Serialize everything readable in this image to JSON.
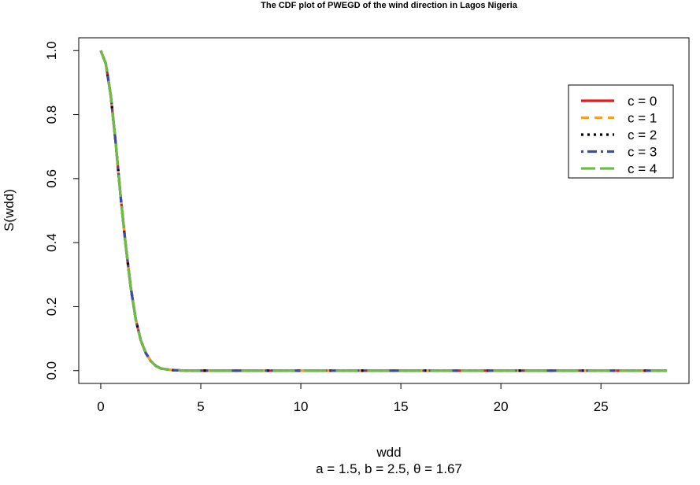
{
  "chart_data": {
    "type": "line",
    "title": "The CDF plot of PWEGD of the wind direction in Lagos Nigeria",
    "xlabel": "wdd",
    "subtitle": "a = 1.5, b = 2.5, θ = 1.67",
    "ylabel": "S(wdd)",
    "xlim": [
      -1.1,
      29.4
    ],
    "ylim": [
      -0.04,
      1.04
    ],
    "xticks": [
      0,
      5,
      10,
      15,
      20,
      25
    ],
    "yticks": [
      0.0,
      0.2,
      0.4,
      0.6,
      0.8,
      1.0
    ],
    "xtick_labels": [
      "0",
      "5",
      "10",
      "15",
      "20",
      "25"
    ],
    "ytick_labels": [
      "0.0",
      "0.2",
      "0.4",
      "0.6",
      "0.8",
      "1.0"
    ],
    "grid": false,
    "legend_position": "top-right",
    "x": [
      0.0,
      0.25,
      0.5,
      0.75,
      1.0,
      1.25,
      1.5,
      1.75,
      2.0,
      2.25,
      2.5,
      2.75,
      3.0,
      3.5,
      4.0,
      5.0,
      6.0,
      8.0,
      10.0,
      12.0,
      15.0,
      18.0,
      21.0,
      24.0,
      27.0,
      28.3
    ],
    "series": [
      {
        "name": "c = 0",
        "color": "#e41a1c",
        "dash": "",
        "values": [
          1.0,
          0.96,
          0.86,
          0.71,
          0.54,
          0.39,
          0.26,
          0.16,
          0.095,
          0.055,
          0.03,
          0.015,
          0.007,
          0.002,
          0.0005,
          0.0,
          0.0,
          0.0,
          0.0,
          0.0,
          0.0,
          0.0,
          0.0,
          0.0,
          0.0,
          0.0
        ]
      },
      {
        "name": "c = 1",
        "color": "#f0a22a",
        "dash": "10,7",
        "values": [
          1.0,
          0.96,
          0.86,
          0.71,
          0.54,
          0.39,
          0.26,
          0.16,
          0.095,
          0.055,
          0.03,
          0.015,
          0.007,
          0.002,
          0.0005,
          0.0,
          0.0,
          0.0,
          0.0,
          0.0,
          0.0,
          0.0,
          0.0,
          0.0,
          0.0,
          0.0
        ]
      },
      {
        "name": "c = 2",
        "color": "#000000",
        "dash": "3,5",
        "values": [
          1.0,
          0.96,
          0.86,
          0.71,
          0.54,
          0.39,
          0.26,
          0.16,
          0.095,
          0.055,
          0.03,
          0.015,
          0.007,
          0.002,
          0.0005,
          0.0,
          0.0,
          0.0,
          0.0,
          0.0,
          0.0,
          0.0,
          0.0,
          0.0,
          0.0,
          0.0
        ]
      },
      {
        "name": "c = 3",
        "color": "#3a4ea8",
        "dash": "3,5,12,5",
        "values": [
          1.0,
          0.96,
          0.86,
          0.71,
          0.54,
          0.39,
          0.26,
          0.16,
          0.095,
          0.055,
          0.03,
          0.015,
          0.007,
          0.002,
          0.0005,
          0.0,
          0.0,
          0.0,
          0.0,
          0.0,
          0.0,
          0.0,
          0.0,
          0.0,
          0.0,
          0.0
        ]
      },
      {
        "name": "c = 4",
        "color": "#6cbd45",
        "dash": "28,12",
        "values": [
          1.0,
          0.96,
          0.86,
          0.71,
          0.54,
          0.39,
          0.26,
          0.16,
          0.095,
          0.055,
          0.03,
          0.015,
          0.007,
          0.002,
          0.0005,
          0.0,
          0.0,
          0.0,
          0.0,
          0.0,
          0.0,
          0.0,
          0.0,
          0.0,
          0.0,
          0.0
        ]
      }
    ]
  }
}
